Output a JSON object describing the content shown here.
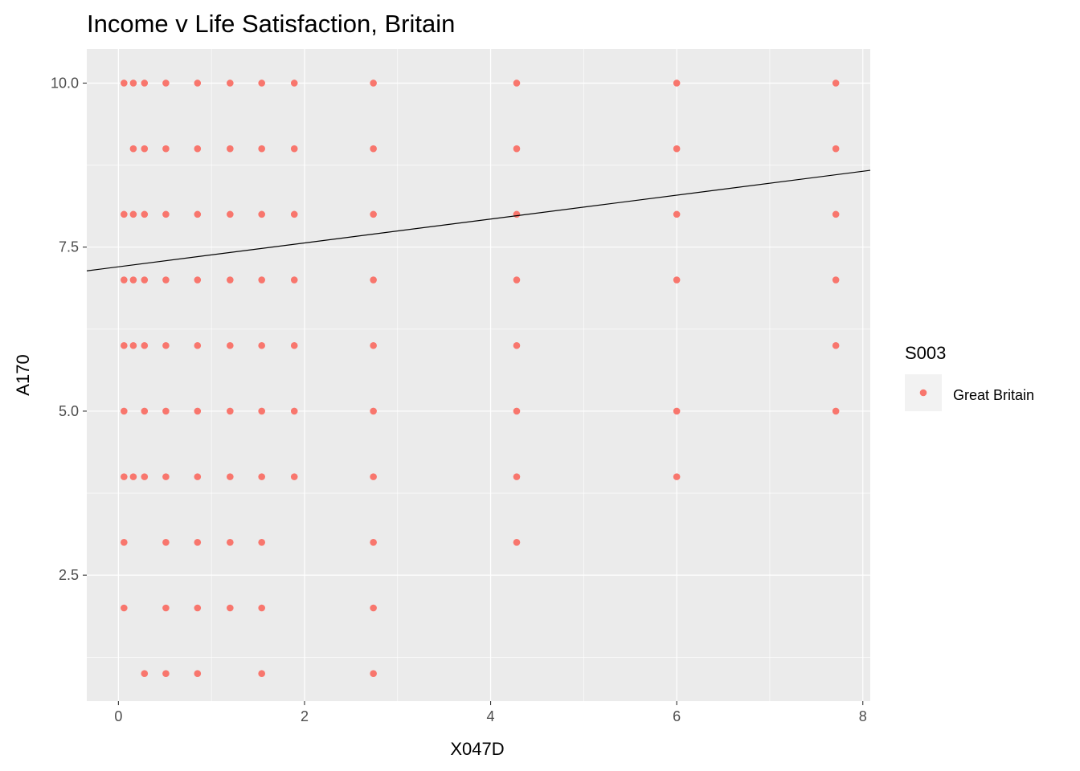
{
  "chart_data": {
    "type": "scatter",
    "title": "Income v Life Satisfaction, Britain",
    "xlabel": "X047D",
    "ylabel": "A170",
    "xlim": [
      -0.34,
      8.08
    ],
    "ylim": [
      0.58,
      10.52
    ],
    "x_ticks": [
      0,
      2,
      4,
      6,
      8
    ],
    "x_tick_labels": [
      "0",
      "2",
      "4",
      "6",
      "8"
    ],
    "y_ticks": [
      2.5,
      5.0,
      7.5,
      10.0
    ],
    "y_tick_labels": [
      "2.5",
      "5.0",
      "7.5",
      "10.0"
    ],
    "grid": true,
    "legend": {
      "title": "S003",
      "position": "right",
      "entries": [
        {
          "label": "Great Britain",
          "color": "#f8766d"
        }
      ]
    },
    "series": [
      {
        "name": "Great Britain",
        "color": "#f8766d",
        "points": [
          [
            0.06,
            10
          ],
          [
            0.16,
            10
          ],
          [
            0.28,
            10
          ],
          [
            0.51,
            10
          ],
          [
            0.85,
            10
          ],
          [
            1.2,
            10
          ],
          [
            1.54,
            10
          ],
          [
            1.89,
            10
          ],
          [
            2.74,
            10
          ],
          [
            4.28,
            10
          ],
          [
            6.0,
            10
          ],
          [
            7.71,
            10
          ],
          [
            0.16,
            9
          ],
          [
            0.28,
            9
          ],
          [
            0.51,
            9
          ],
          [
            0.85,
            9
          ],
          [
            1.2,
            9
          ],
          [
            1.54,
            9
          ],
          [
            1.89,
            9
          ],
          [
            2.74,
            9
          ],
          [
            4.28,
            9
          ],
          [
            6.0,
            9
          ],
          [
            7.71,
            9
          ],
          [
            0.06,
            8
          ],
          [
            0.16,
            8
          ],
          [
            0.28,
            8
          ],
          [
            0.51,
            8
          ],
          [
            0.85,
            8
          ],
          [
            1.2,
            8
          ],
          [
            1.54,
            8
          ],
          [
            1.89,
            8
          ],
          [
            2.74,
            8
          ],
          [
            4.28,
            8
          ],
          [
            6.0,
            8
          ],
          [
            7.71,
            8
          ],
          [
            0.06,
            7
          ],
          [
            0.16,
            7
          ],
          [
            0.28,
            7
          ],
          [
            0.51,
            7
          ],
          [
            0.85,
            7
          ],
          [
            1.2,
            7
          ],
          [
            1.54,
            7
          ],
          [
            1.89,
            7
          ],
          [
            2.74,
            7
          ],
          [
            4.28,
            7
          ],
          [
            6.0,
            7
          ],
          [
            7.71,
            7
          ],
          [
            0.06,
            6
          ],
          [
            0.16,
            6
          ],
          [
            0.28,
            6
          ],
          [
            0.51,
            6
          ],
          [
            0.85,
            6
          ],
          [
            1.2,
            6
          ],
          [
            1.54,
            6
          ],
          [
            1.89,
            6
          ],
          [
            2.74,
            6
          ],
          [
            4.28,
            6
          ],
          [
            7.71,
            6
          ],
          [
            0.06,
            5
          ],
          [
            0.28,
            5
          ],
          [
            0.51,
            5
          ],
          [
            0.85,
            5
          ],
          [
            1.2,
            5
          ],
          [
            1.54,
            5
          ],
          [
            1.89,
            5
          ],
          [
            2.74,
            5
          ],
          [
            4.28,
            5
          ],
          [
            6.0,
            5
          ],
          [
            7.71,
            5
          ],
          [
            0.06,
            4
          ],
          [
            0.16,
            4
          ],
          [
            0.28,
            4
          ],
          [
            0.51,
            4
          ],
          [
            0.85,
            4
          ],
          [
            1.2,
            4
          ],
          [
            1.54,
            4
          ],
          [
            1.89,
            4
          ],
          [
            2.74,
            4
          ],
          [
            4.28,
            4
          ],
          [
            6.0,
            4
          ],
          [
            0.06,
            3
          ],
          [
            0.51,
            3
          ],
          [
            0.85,
            3
          ],
          [
            1.2,
            3
          ],
          [
            1.54,
            3
          ],
          [
            2.74,
            3
          ],
          [
            4.28,
            3
          ],
          [
            0.06,
            2
          ],
          [
            0.51,
            2
          ],
          [
            0.85,
            2
          ],
          [
            1.2,
            2
          ],
          [
            1.54,
            2
          ],
          [
            2.74,
            2
          ],
          [
            0.28,
            1
          ],
          [
            0.51,
            1
          ],
          [
            0.85,
            1
          ],
          [
            1.54,
            1
          ],
          [
            2.74,
            1
          ]
        ]
      }
    ],
    "fit_line": {
      "type": "linear",
      "color": "#000000",
      "intercept": 7.2,
      "slope": 0.182
    }
  }
}
